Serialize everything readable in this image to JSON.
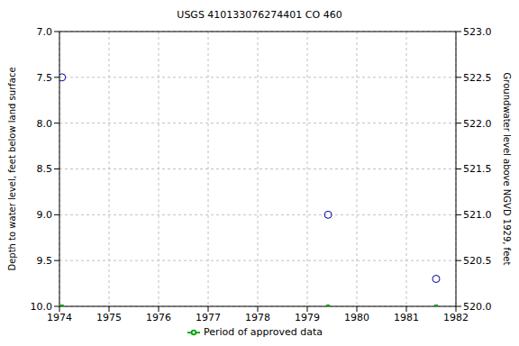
{
  "chart_data": {
    "type": "scatter",
    "title": "USGS 410133076274401 CO   460",
    "ylabel": "Depth to water level, feet below land surface",
    "y2label": "Groundwater level above NGVD 1929, feet",
    "xlim": [
      1974,
      1982
    ],
    "xticks": [
      1974,
      1975,
      1976,
      1977,
      1978,
      1979,
      1980,
      1981,
      1982
    ],
    "ylim": [
      10.0,
      7.0
    ],
    "yticks": [
      {
        "value": 7.0,
        "label": "7.0"
      },
      {
        "value": 7.5,
        "label": "7.5"
      },
      {
        "value": 8.0,
        "label": "8.0"
      },
      {
        "value": 8.5,
        "label": "8.5"
      },
      {
        "value": 9.0,
        "label": "9.0"
      },
      {
        "value": 9.5,
        "label": "9.5"
      },
      {
        "value": 10.0,
        "label": "10.0"
      }
    ],
    "y2lim": [
      520.0,
      523.0
    ],
    "y2ticks": [
      {
        "value": 520.0,
        "label": "520.0"
      },
      {
        "value": 520.5,
        "label": "520.5"
      },
      {
        "value": 521.0,
        "label": "521.0"
      },
      {
        "value": 521.5,
        "label": "521.5"
      },
      {
        "value": 522.0,
        "label": "522.0"
      },
      {
        "value": 522.5,
        "label": "522.5"
      },
      {
        "value": 523.0,
        "label": "523.0"
      }
    ],
    "grid": true,
    "legend": "bottom",
    "series": [
      {
        "color": "#0000a0",
        "marker": "open_circle",
        "x": [
          1974.05,
          1979.42,
          1981.6
        ],
        "values": [
          7.5,
          9.0,
          9.7
        ]
      },
      {
        "name": "Period of approved data",
        "color": "#00a000",
        "marker": "square",
        "x": [
          1974.05,
          1979.42,
          1981.6
        ],
        "values": [
          10.0,
          10.0,
          10.0
        ]
      }
    ]
  }
}
